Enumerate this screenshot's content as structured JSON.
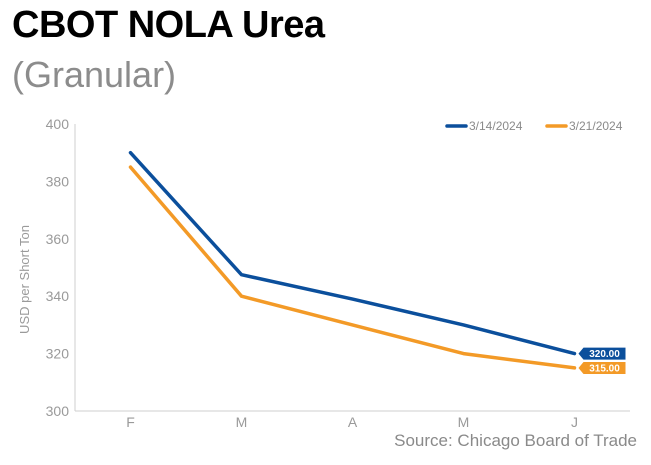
{
  "header": {
    "title": "CBOT NOLA Urea",
    "subtitle": "(Granular)"
  },
  "footer": {
    "source": "Source: Chicago Board of Trade"
  },
  "chart_data": {
    "type": "line",
    "title": "CBOT NOLA Urea",
    "subtitle": "(Granular)",
    "xlabel": "",
    "ylabel": "USD per Short Ton",
    "categories": [
      "F",
      "M",
      "A",
      "M",
      "J"
    ],
    "ylim": [
      300,
      400
    ],
    "yticks": [
      300,
      320,
      340,
      360,
      380,
      400
    ],
    "grid": false,
    "legend_position": "top-right",
    "series": [
      {
        "name": "3/14/2024",
        "color": "#0b4f9c",
        "values": [
          390,
          347.5,
          339,
          330,
          320
        ],
        "end_label": "320.00"
      },
      {
        "name": "3/21/2024",
        "color": "#f39a27",
        "values": [
          385,
          340,
          330,
          320,
          315
        ],
        "end_label": "315.00"
      }
    ]
  }
}
